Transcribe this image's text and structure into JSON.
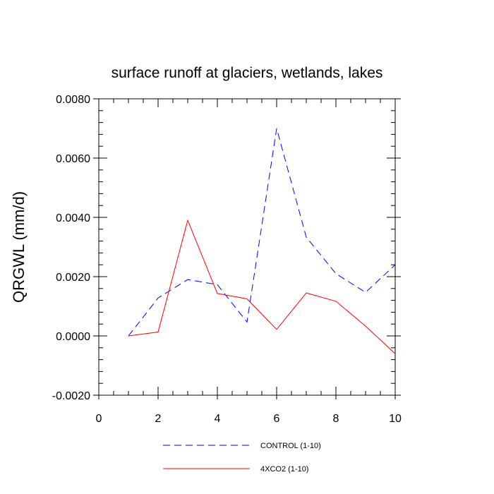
{
  "chart_data": {
    "type": "line",
    "title": "surface runoff at glaciers, wetlands, lakes",
    "xlabel": "",
    "ylabel": "QRGWL  (mm/d)",
    "xlim": [
      0,
      10
    ],
    "ylim": [
      -0.002,
      0.008
    ],
    "x_ticks": [
      0,
      2,
      4,
      6,
      8,
      10
    ],
    "x_tick_labels": [
      "0",
      "2",
      "4",
      "6",
      "8",
      "10"
    ],
    "y_ticks": [
      -0.002,
      0.0,
      0.002,
      0.004,
      0.006,
      0.008
    ],
    "y_tick_labels": [
      "-0.0020",
      "0.0000",
      "0.0020",
      "0.0040",
      "0.0060",
      "0.0080"
    ],
    "grid": false,
    "legend_position": "bottom-center",
    "x": [
      1,
      2,
      3,
      4,
      5,
      6,
      7,
      8,
      9,
      10
    ],
    "series": [
      {
        "name": "CONTROL (1-10)",
        "color": "#0000ff",
        "style": "dashed",
        "values": [
          0.0,
          0.00128,
          0.0019,
          0.00173,
          0.00047,
          0.007,
          0.00333,
          0.0021,
          0.00147,
          0.0024
        ]
      },
      {
        "name": "4XCO2 (1-10)",
        "color": "#ff0000",
        "style": "solid",
        "values": [
          0.0,
          0.00013,
          0.0039,
          0.00143,
          0.00125,
          0.00022,
          0.00145,
          0.00117,
          0.00033,
          -0.0006
        ]
      }
    ]
  }
}
